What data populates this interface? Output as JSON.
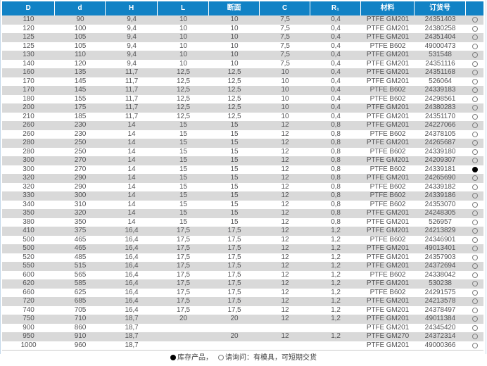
{
  "table": {
    "headers": [
      "D",
      "d",
      "H",
      "L",
      "断面",
      "C",
      "R₁",
      "材料",
      "订货号",
      ""
    ],
    "header_keys": [
      "D",
      "d",
      "H",
      "L",
      "cross-section",
      "C",
      "R1",
      "material",
      "order-number"
    ],
    "rows": [
      [
        "110",
        "90",
        "9,4",
        "10",
        "10",
        "7,5",
        "0,4",
        "PTFE GM201",
        "24351403",
        "open"
      ],
      [
        "120",
        "100",
        "9,4",
        "10",
        "10",
        "7,5",
        "0,4",
        "PTFE GM201",
        "24380258",
        "open"
      ],
      [
        "125",
        "105",
        "9,4",
        "10",
        "10",
        "7,5",
        "0,4",
        "PTFE GM201",
        "24351404",
        "open"
      ],
      [
        "125",
        "105",
        "9,4",
        "10",
        "10",
        "7,5",
        "0,4",
        "PTFE B602",
        "49000473",
        "open"
      ],
      [
        "130",
        "110",
        "9,4",
        "10",
        "10",
        "7,5",
        "0,4",
        "PTFE GM201",
        "531548",
        "open"
      ],
      [
        "140",
        "120",
        "9,4",
        "10",
        "10",
        "7,5",
        "0,4",
        "PTFE GM201",
        "24351116",
        "open"
      ],
      [
        "160",
        "135",
        "11,7",
        "12,5",
        "12,5",
        "10",
        "0,4",
        "PTFE GM201",
        "24351168",
        "open"
      ],
      [
        "170",
        "145",
        "11,7",
        "12,5",
        "12,5",
        "10",
        "0,4",
        "PTFE GM201",
        "526064",
        "open"
      ],
      [
        "170",
        "145",
        "11,7",
        "12,5",
        "12,5",
        "10",
        "0,4",
        "PTFE B602",
        "24339183",
        "open"
      ],
      [
        "180",
        "155",
        "11,7",
        "12,5",
        "12,5",
        "10",
        "0,4",
        "PTFE B602",
        "24298561",
        "open"
      ],
      [
        "200",
        "175",
        "11,7",
        "12,5",
        "12,5",
        "10",
        "0,4",
        "PTFE GM201",
        "24380283",
        "open"
      ],
      [
        "210",
        "185",
        "11,7",
        "12,5",
        "12,5",
        "10",
        "0,4",
        "PTFE GM201",
        "24351170",
        "open"
      ],
      [
        "260",
        "230",
        "14",
        "15",
        "15",
        "12",
        "0,8",
        "PTFE GM201",
        "24227066",
        "open"
      ],
      [
        "260",
        "230",
        "14",
        "15",
        "15",
        "12",
        "0,8",
        "PTFE B602",
        "24378105",
        "open"
      ],
      [
        "280",
        "250",
        "14",
        "15",
        "15",
        "12",
        "0,8",
        "PTFE GM201",
        "24265687",
        "open"
      ],
      [
        "280",
        "250",
        "14",
        "15",
        "15",
        "12",
        "0,8",
        "PTFE B602",
        "24339180",
        "open"
      ],
      [
        "300",
        "270",
        "14",
        "15",
        "15",
        "12",
        "0,8",
        "PTFE GM201",
        "24209307",
        "open"
      ],
      [
        "300",
        "270",
        "14",
        "15",
        "15",
        "12",
        "0,8",
        "PTFE B602",
        "24339181",
        "filled"
      ],
      [
        "320",
        "290",
        "14",
        "15",
        "15",
        "12",
        "0,8",
        "PTFE GM201",
        "24265690",
        "open"
      ],
      [
        "320",
        "290",
        "14",
        "15",
        "15",
        "12",
        "0,8",
        "PTFE B602",
        "24339182",
        "open"
      ],
      [
        "330",
        "300",
        "14",
        "15",
        "15",
        "12",
        "0,8",
        "PTFE B602",
        "24339186",
        "open"
      ],
      [
        "340",
        "310",
        "14",
        "15",
        "15",
        "12",
        "0,8",
        "PTFE B602",
        "24353070",
        "open"
      ],
      [
        "350",
        "320",
        "14",
        "15",
        "15",
        "12",
        "0,8",
        "PTFE GM201",
        "24248305",
        "open"
      ],
      [
        "380",
        "350",
        "14",
        "15",
        "15",
        "12",
        "0,8",
        "PTFE GM201",
        "526957",
        "open"
      ],
      [
        "410",
        "375",
        "16,4",
        "17,5",
        "17,5",
        "12",
        "1,2",
        "PTFE GM201",
        "24213829",
        "open"
      ],
      [
        "500",
        "465",
        "16,4",
        "17,5",
        "17,5",
        "12",
        "1,2",
        "PTFE B602",
        "24346901",
        "open"
      ],
      [
        "500",
        "465",
        "16,4",
        "17,5",
        "17,5",
        "12",
        "1,2",
        "PTFE GM201",
        "49013401",
        "open"
      ],
      [
        "520",
        "485",
        "16,4",
        "17,5",
        "17,5",
        "12",
        "1,2",
        "PTFE GM201",
        "24357903",
        "open"
      ],
      [
        "550",
        "515",
        "16,4",
        "17,5",
        "17,5",
        "12",
        "1,2",
        "PTFE GM201",
        "24372694",
        "open"
      ],
      [
        "600",
        "565",
        "16,4",
        "17,5",
        "17,5",
        "12",
        "1,2",
        "PTFE B602",
        "24338042",
        "open"
      ],
      [
        "620",
        "585",
        "16,4",
        "17,5",
        "17,5",
        "12",
        "1,2",
        "PTFE GM201",
        "530238",
        "open"
      ],
      [
        "660",
        "625",
        "16,4",
        "17,5",
        "17,5",
        "12",
        "1,2",
        "PTFE B602",
        "24291575",
        "open"
      ],
      [
        "720",
        "685",
        "16,4",
        "17,5",
        "17,5",
        "12",
        "1,2",
        "PTFE GM201",
        "24213578",
        "open"
      ],
      [
        "740",
        "705",
        "16,4",
        "17,5",
        "17,5",
        "12",
        "1,2",
        "PTFE GM201",
        "24378497",
        "open"
      ],
      [
        "750",
        "710",
        "18,7",
        "20",
        "20",
        "12",
        "1,2",
        "PTFE GM201",
        "49011384",
        "open"
      ],
      [
        "900",
        "860",
        "18,7",
        "",
        "",
        "",
        "",
        "PTFE GM201",
        "24345420",
        "open"
      ],
      [
        "950",
        "910",
        "18,7",
        "",
        "20",
        "12",
        "1,2",
        "PTFE GM270",
        "24372314",
        "open"
      ],
      [
        "1000",
        "960",
        "18,7",
        "",
        "",
        "",
        "",
        "PTFE GM201",
        "49000366",
        "open"
      ]
    ]
  },
  "legend": {
    "stocked": "库存产品，",
    "inquiry": "请询问：有模具，可短期交货"
  },
  "colors": {
    "header_bg": "#1182c5",
    "row_stripe": "#d9d9d9",
    "cell_text": "#545456",
    "filled_indicator": "#000000"
  }
}
